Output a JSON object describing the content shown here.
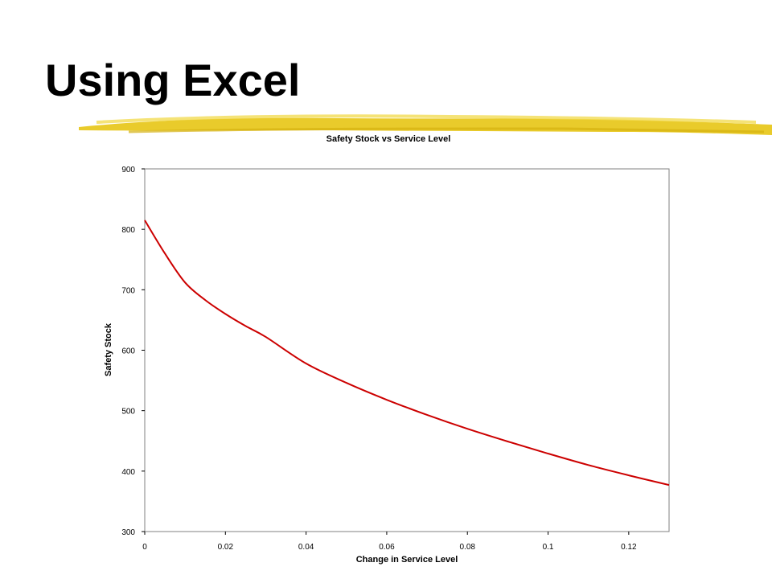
{
  "slide": {
    "title": "Using Excel",
    "accent_color": "#e8c820"
  },
  "chart_data": {
    "type": "line",
    "title": "Safety Stock vs Service Level",
    "xlabel": "Change in Service Level",
    "ylabel": "Safety Stock",
    "xlim": [
      0,
      0.13
    ],
    "ylim": [
      300,
      900
    ],
    "xticks": [
      0,
      0.02,
      0.04,
      0.06,
      0.08,
      0.1,
      0.12
    ],
    "xtick_labels": [
      "0",
      "0.02",
      "0.04",
      "0.06",
      "0.08",
      "0.1",
      "0.12"
    ],
    "yticks": [
      300,
      400,
      500,
      600,
      700,
      800,
      900
    ],
    "ytick_labels": [
      "300",
      "400",
      "500",
      "600",
      "700",
      "800",
      "900"
    ],
    "grid": false,
    "legend": "none",
    "series": [
      {
        "color": "#cc0000",
        "x": [
          0,
          0.005,
          0.01,
          0.015,
          0.02,
          0.025,
          0.03,
          0.04,
          0.05,
          0.06,
          0.07,
          0.08,
          0.09,
          0.1,
          0.11,
          0.12,
          0.13
        ],
        "y": [
          815,
          760,
          712,
          683,
          660,
          640,
          622,
          578,
          546,
          518,
          493,
          470,
          449,
          429,
          410,
          393,
          377
        ]
      }
    ]
  }
}
